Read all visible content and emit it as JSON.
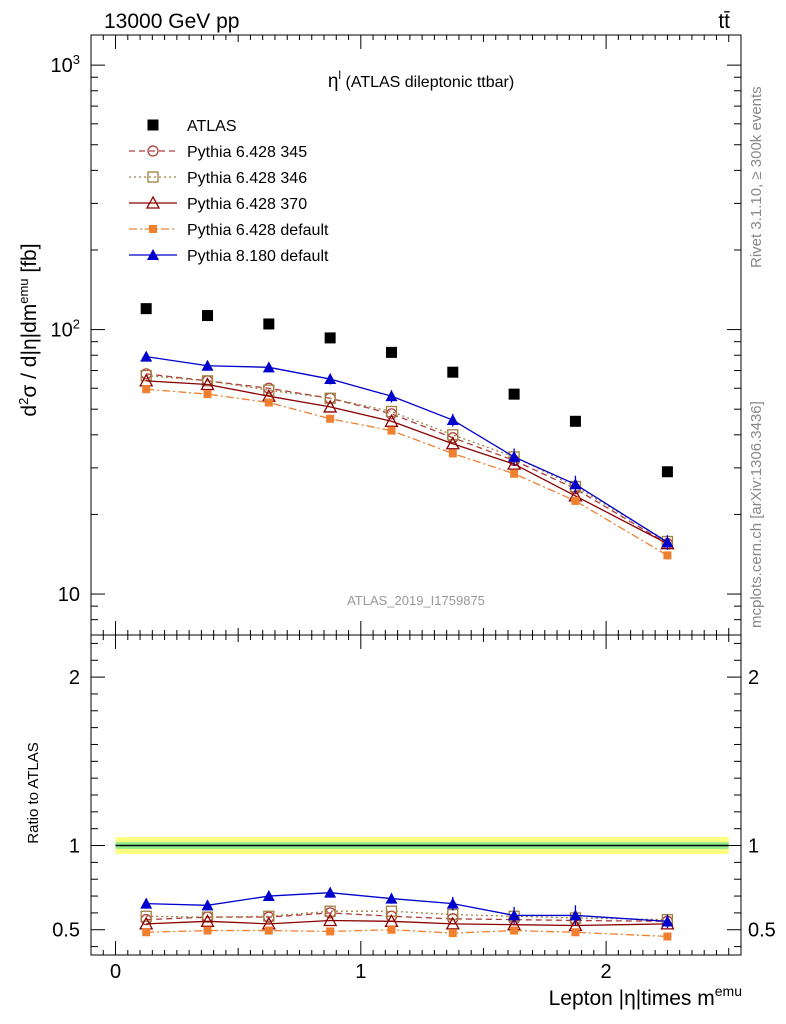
{
  "header": {
    "left": "13000 GeV pp",
    "right": "tt̄"
  },
  "side_text": {
    "rivet": "Rivet 3.1.10, ≥ 300k events",
    "mcplots": "mcplots.cern.ch [arXiv:1306.3436]"
  },
  "chart_data": [
    {
      "type": "scatter",
      "title": "η^l (ATLAS dileptonic ttbar)",
      "title_parts": {
        "main": "η",
        "sup": "l",
        "rest": " (ATLAS dileptonic ttbar)"
      },
      "ylabel": "d²σ / d|η|dm^emu [fb]",
      "ylabel_parts": {
        "a": "d",
        "a_sup": "2",
        "b": "σ / d|η|dm",
        "b_sup": "emu",
        "c": " [fb]"
      },
      "xlim": [
        -0.1,
        2.55
      ],
      "ylim": [
        7,
        1300
      ],
      "yscale": "log",
      "watermark": "ATLAS_2019_I1759875",
      "x": [
        0.125,
        0.375,
        0.625,
        0.875,
        1.125,
        1.375,
        1.625,
        1.875,
        2.25
      ],
      "series": [
        {
          "name": "ATLAS",
          "color": "#000000",
          "marker": "square-filled",
          "line": "none",
          "values": [
            120,
            113,
            105,
            93,
            82,
            69,
            57,
            45,
            29
          ]
        },
        {
          "name": "Pythia 6.428 345",
          "color": "#b03c3c",
          "marker": "circle-open",
          "line": "dashed",
          "values": [
            68,
            64,
            60,
            55,
            48,
            39,
            32,
            25,
            15.5
          ]
        },
        {
          "name": "Pythia 6.428 346",
          "color": "#a08040",
          "marker": "square-open",
          "line": "dotted",
          "values": [
            67,
            64,
            59,
            55,
            49,
            40,
            33,
            25.5,
            15.8
          ]
        },
        {
          "name": "Pythia 6.428 370",
          "color": "#8b0000",
          "marker": "triangle-open",
          "line": "solid",
          "values": [
            64,
            62,
            56,
            51,
            45,
            37,
            31,
            23.5,
            15.5
          ]
        },
        {
          "name": "Pythia 6.428 default",
          "color": "#f08030",
          "marker": "square-filled-small",
          "line": "dashdot",
          "values": [
            59.5,
            57,
            53,
            46,
            41.5,
            34,
            28.5,
            22.5,
            14
          ]
        },
        {
          "name": "Pythia 8.180 default",
          "color": "#0000cc",
          "marker": "triangle-filled",
          "line": "solid",
          "values": [
            79,
            73,
            72,
            65,
            56,
            45.5,
            33,
            26,
            15.7
          ],
          "errors": [
            3,
            3,
            3,
            3,
            3,
            2.5,
            2.5,
            2,
            1
          ]
        }
      ]
    },
    {
      "type": "scatter",
      "ylabel": "Ratio to ATLAS",
      "xlabel": "Lepton |η|times m^emu",
      "xlabel_parts": {
        "main": "Lepton |η|times m",
        "sup": "emu"
      },
      "xlim": [
        -0.1,
        2.55
      ],
      "ylim": [
        0.35,
        2.25
      ],
      "xticks": [
        "0",
        "1",
        "2"
      ],
      "yticks": [
        "0.5",
        "1",
        "2"
      ],
      "reference_line": 1,
      "band_inner": [
        0.98,
        1.02
      ],
      "band_outer": [
        0.95,
        1.05
      ],
      "x": [
        0.125,
        0.375,
        0.625,
        0.875,
        1.125,
        1.375,
        1.625,
        1.875,
        2.25
      ],
      "series": [
        {
          "name": "Pythia 6.428 345",
          "color": "#b03c3c",
          "marker": "circle-open",
          "line": "dashed",
          "values": [
            0.56,
            0.575,
            0.575,
            0.6,
            0.58,
            0.565,
            0.56,
            0.555,
            0.55
          ]
        },
        {
          "name": "Pythia 6.428 346",
          "color": "#a08040",
          "marker": "square-open",
          "line": "dotted",
          "values": [
            0.58,
            0.575,
            0.58,
            0.61,
            0.61,
            0.59,
            0.58,
            0.57,
            0.56
          ]
        },
        {
          "name": "Pythia 6.428 370",
          "color": "#8b0000",
          "marker": "triangle-open",
          "line": "solid",
          "values": [
            0.535,
            0.55,
            0.535,
            0.555,
            0.55,
            0.535,
            0.53,
            0.525,
            0.535
          ]
        },
        {
          "name": "Pythia 6.428 default",
          "color": "#f08030",
          "marker": "square-filled-small",
          "line": "dashdot",
          "values": [
            0.485,
            0.495,
            0.495,
            0.49,
            0.5,
            0.48,
            0.495,
            0.485,
            0.46
          ]
        },
        {
          "name": "Pythia 8.180 default",
          "color": "#0000cc",
          "marker": "triangle-filled",
          "line": "solid",
          "values": [
            0.655,
            0.645,
            0.7,
            0.72,
            0.685,
            0.655,
            0.585,
            0.585,
            0.55
          ],
          "errors": [
            0.03,
            0.03,
            0.03,
            0.03,
            0.03,
            0.04,
            0.05,
            0.06,
            0.04
          ]
        }
      ]
    }
  ]
}
